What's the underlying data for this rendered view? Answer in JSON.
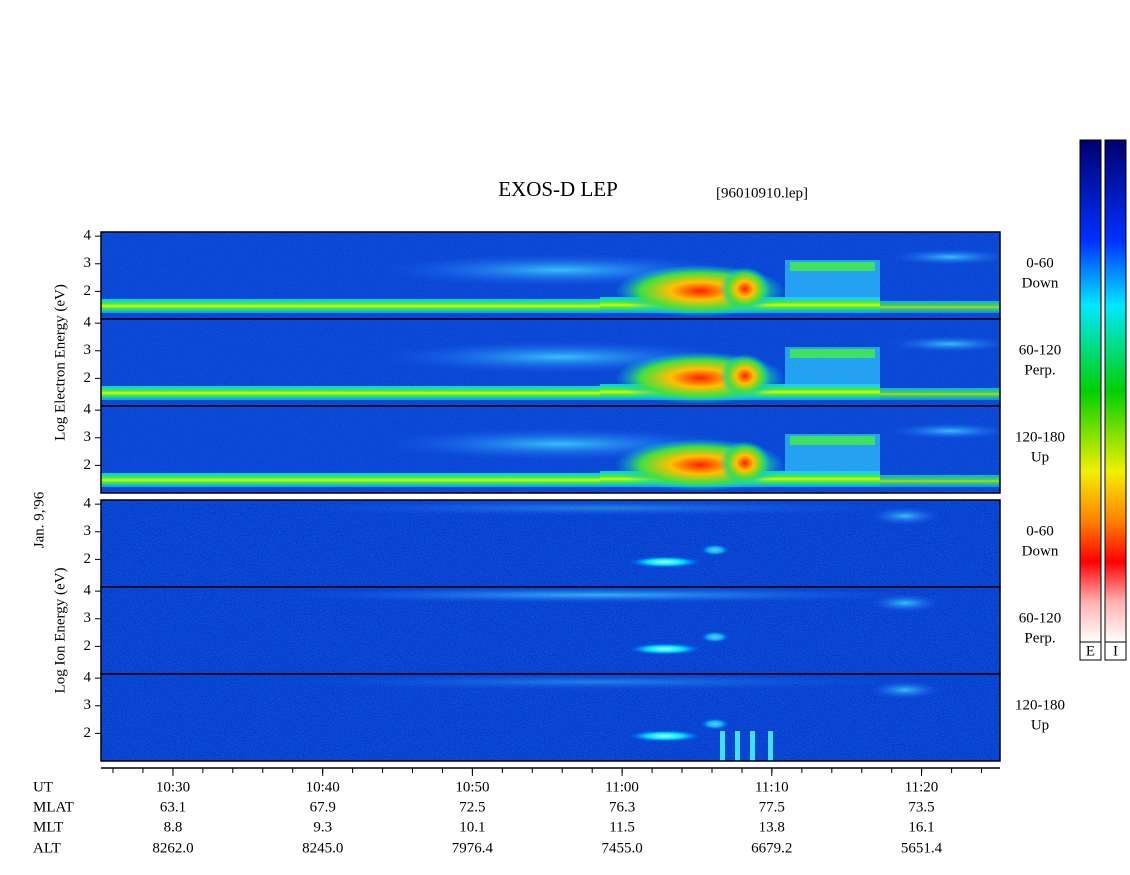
{
  "header": {
    "title": "EXOS-D LEP",
    "file": "[96010910.lep]"
  },
  "date_label": "Jan. 9,'96",
  "groups": [
    {
      "kind": "electron",
      "axis_label": "Log Electron Energy (eV)",
      "panels": [
        {
          "angle": "0-60",
          "direction": "Down"
        },
        {
          "angle": "60-120",
          "direction": "Perp."
        },
        {
          "angle": "120-180",
          "direction": "Up"
        }
      ]
    },
    {
      "kind": "ion",
      "axis_label": "Log Ion Energy (eV)",
      "panels": [
        {
          "angle": "0-60",
          "direction": "Down"
        },
        {
          "angle": "60-120",
          "direction": "Perp."
        },
        {
          "angle": "120-180",
          "direction": "Up"
        }
      ]
    }
  ],
  "yaxis": {
    "ylim": [
      1,
      4.15
    ],
    "yticks": [
      2,
      3,
      4
    ]
  },
  "time_axis": {
    "rows": [
      {
        "name": "UT",
        "values": [
          "10:30",
          "10:40",
          "10:50",
          "11:00",
          "11:10",
          "11:20"
        ]
      },
      {
        "name": "MLAT",
        "values": [
          "63.1",
          "67.9",
          "72.5",
          "76.3",
          "77.5",
          "73.5"
        ]
      },
      {
        "name": "MLT",
        "values": [
          "8.8",
          "9.3",
          "10.1",
          "11.5",
          "13.8",
          "16.1"
        ]
      },
      {
        "name": "ALT",
        "values": [
          "8262.0",
          "8245.0",
          "7976.4",
          "7455.0",
          "6679.2",
          "5651.4"
        ]
      }
    ]
  },
  "colorbars": [
    "E",
    "I"
  ]
}
